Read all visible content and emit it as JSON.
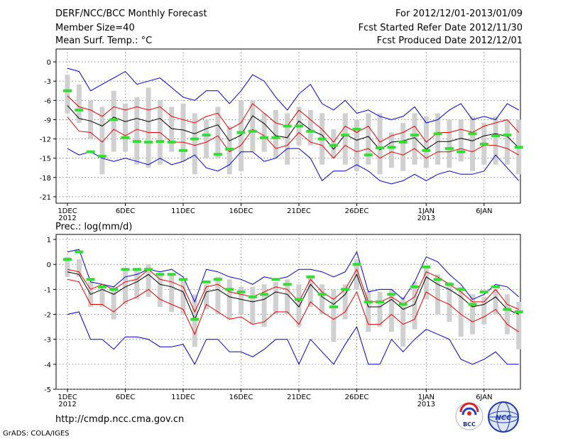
{
  "header": {
    "left": [
      "DERF/NCC/BCC Monthly Forecast",
      "Member Size=40",
      "Mean Surf. Temp.: °C"
    ],
    "right": [
      "For 2012/12/01-2013/01/09",
      "Fcst Started Refer Date 2012/11/30",
      "Fcst Produced Date 2012/12/01"
    ]
  },
  "footer": {
    "url": "http://cmdp.ncc.cma.gov.cn",
    "credit": "GrADS: COLA/IGES"
  },
  "logos": {
    "bcc": "BCC",
    "ncc": "NCC"
  },
  "colors": {
    "mean": "#000000",
    "spread": "#e60000",
    "range": "#0000cc",
    "box": "#d0d0d0",
    "median": "#33dd33"
  },
  "chart_data": [
    {
      "type": "line",
      "title": "Mean Surf. Temp.: °C",
      "ylim": [
        -22,
        2
      ],
      "yticks": [
        0,
        -3,
        -6,
        -9,
        -12,
        -15,
        -18,
        -21
      ],
      "xticks": [
        {
          "day": 1,
          "label": "1DEC",
          "sub": "2012"
        },
        {
          "day": 6,
          "label": "6DEC",
          "sub": ""
        },
        {
          "day": 11,
          "label": "11DEC",
          "sub": ""
        },
        {
          "day": 16,
          "label": "16DEC",
          "sub": ""
        },
        {
          "day": 21,
          "label": "21DEC",
          "sub": ""
        },
        {
          "day": 26,
          "label": "26DEC",
          "sub": ""
        },
        {
          "day": 32,
          "label": "1JAN",
          "sub": "2013"
        },
        {
          "day": 37,
          "label": "6JAN",
          "sub": ""
        }
      ],
      "x": [
        1,
        2,
        3,
        4,
        5,
        6,
        7,
        8,
        9,
        10,
        11,
        12,
        13,
        14,
        15,
        16,
        17,
        18,
        19,
        20,
        21,
        22,
        23,
        24,
        25,
        26,
        27,
        28,
        29,
        30,
        31,
        32,
        33,
        34,
        35,
        36,
        37,
        38,
        39,
        40
      ],
      "series": [
        {
          "name": "max",
          "values": [
            -1.0,
            -1.5,
            -4.5,
            -3.5,
            -2.5,
            -1.5,
            -3.5,
            -3.0,
            -2.5,
            -4.0,
            -5.5,
            -6.0,
            -4.5,
            -4.5,
            -6.5,
            -4.5,
            -2.0,
            -3.0,
            -5.5,
            -7.5,
            -5.0,
            -3.5,
            -6.5,
            -7.5,
            -6.0,
            -8.0,
            -7.5,
            -8.5,
            -9.0,
            -8.5,
            -7.0,
            -9.5,
            -9.0,
            -7.5,
            -6.5,
            -9.0,
            -8.5,
            -9.0,
            -6.5,
            -7.5
          ]
        },
        {
          "name": "upper",
          "values": [
            -5.3,
            -7.0,
            -7.5,
            -8.5,
            -7.0,
            -7.5,
            -7.0,
            -7.5,
            -7.0,
            -8.5,
            -9.0,
            -9.5,
            -8.5,
            -8.0,
            -10.5,
            -9.5,
            -6.5,
            -8.0,
            -9.5,
            -10.0,
            -7.5,
            -9.0,
            -10.5,
            -12.5,
            -10.0,
            -11.0,
            -10.0,
            -12.5,
            -11.5,
            -11.0,
            -10.0,
            -12.5,
            -11.0,
            -11.0,
            -10.5,
            -11.0,
            -10.0,
            -9.5,
            -9.0,
            -11.0
          ]
        },
        {
          "name": "mean",
          "values": [
            -6.8,
            -8.8,
            -9.2,
            -10.0,
            -8.6,
            -9.3,
            -8.8,
            -9.3,
            -8.8,
            -10.4,
            -10.6,
            -11.2,
            -10.4,
            -9.8,
            -12.3,
            -11.4,
            -8.4,
            -9.6,
            -11.5,
            -11.8,
            -9.2,
            -10.6,
            -11.4,
            -13.6,
            -11.3,
            -12.2,
            -11.6,
            -13.7,
            -12.5,
            -12.3,
            -11.8,
            -13.6,
            -12.4,
            -12.4,
            -11.9,
            -12.3,
            -11.5,
            -11.2,
            -11.6,
            -13.4
          ]
        },
        {
          "name": "lower",
          "values": [
            -8.6,
            -10.8,
            -11.0,
            -12.5,
            -10.5,
            -11.5,
            -10.5,
            -11.0,
            -11.0,
            -12.5,
            -12.5,
            -13.0,
            -12.5,
            -11.5,
            -14.0,
            -13.0,
            -10.5,
            -11.5,
            -13.5,
            -13.0,
            -11.0,
            -12.5,
            -13.0,
            -15.0,
            -13.0,
            -14.0,
            -13.5,
            -15.0,
            -14.0,
            -14.5,
            -13.5,
            -15.0,
            -14.0,
            -14.0,
            -13.5,
            -14.0,
            -13.0,
            -13.0,
            -13.5,
            -14.5
          ]
        },
        {
          "name": "min",
          "values": [
            -13.5,
            -14.5,
            -14.0,
            -15.0,
            -15.5,
            -15.0,
            -15.5,
            -16.0,
            -15.0,
            -16.0,
            -15.5,
            -14.5,
            -16.5,
            -17.0,
            -16.0,
            -14.0,
            -14.0,
            -15.5,
            -15.0,
            -13.5,
            -13.5,
            -15.0,
            -18.5,
            -17.0,
            -17.0,
            -16.0,
            -17.0,
            -18.5,
            -19.0,
            -18.5,
            -17.5,
            -18.5,
            -17.5,
            -17.0,
            -17.5,
            -17.5,
            -17.0,
            -14.5,
            -16.5,
            -18.5
          ]
        },
        {
          "name": "box_hi",
          "values": [
            -2,
            -3.5,
            -6,
            -7,
            -4.5,
            -6.5,
            -5.5,
            -4,
            -6,
            -7,
            -6.5,
            -8,
            -9,
            -7,
            -10,
            -6,
            -6,
            -8,
            -7.5,
            -8,
            -7,
            -7.5,
            -8,
            -10.5,
            -8,
            -9,
            -8,
            -8,
            -11,
            -9.5,
            -8,
            -8.5,
            -8,
            -9,
            -9,
            -8.5,
            -9.5,
            -8.5,
            -9,
            -9
          ]
        },
        {
          "name": "box_lo",
          "values": [
            -8,
            -9.5,
            -12,
            -17.5,
            -14,
            -14,
            -16,
            -16.5,
            -16,
            -14,
            -15.5,
            -17.5,
            -15,
            -15,
            -17.5,
            -17,
            -14,
            -14,
            -15,
            -16,
            -13,
            -13,
            -16,
            -15,
            -16,
            -17,
            -16,
            -17.5,
            -16.5,
            -17,
            -16,
            -16.5,
            -16,
            -16.5,
            -15.5,
            -17,
            -16,
            -16,
            -16,
            -17.5
          ]
        },
        {
          "name": "median",
          "values": [
            -4.5,
            -7.5,
            -14,
            -14.7,
            -9.0,
            -11.8,
            -12.4,
            -12.5,
            -12.4,
            -12.5,
            -13.8,
            -12.0,
            -11.4,
            -14.4,
            -13.6,
            -11.0,
            -10.8,
            -11.8,
            -11.8,
            -10.0,
            -10.0,
            -10.8,
            -12.0,
            -13.0,
            -11.4,
            -10.5,
            -14.5,
            -13.4,
            -13.3,
            -12.5,
            -11.4,
            -13.8,
            -11.2,
            -13.5,
            -14.0,
            -11.2,
            -12.8,
            -11.5,
            -11.4,
            -13.3
          ]
        }
      ]
    },
    {
      "type": "line",
      "title": "Prec.: log(mm/d)",
      "ylim": [
        -5,
        1.2
      ],
      "yticks": [
        1,
        0,
        -1,
        -2,
        -3,
        -4,
        -5
      ],
      "xticks": [
        {
          "day": 1,
          "label": "1DEC",
          "sub": "2012"
        },
        {
          "day": 6,
          "label": "6DEC",
          "sub": ""
        },
        {
          "day": 11,
          "label": "11DEC",
          "sub": ""
        },
        {
          "day": 16,
          "label": "16DEC",
          "sub": ""
        },
        {
          "day": 21,
          "label": "21DEC",
          "sub": ""
        },
        {
          "day": 26,
          "label": "26DEC",
          "sub": ""
        },
        {
          "day": 32,
          "label": "1JAN",
          "sub": "2013"
        },
        {
          "day": 37,
          "label": "6JAN",
          "sub": ""
        }
      ],
      "x": [
        1,
        2,
        3,
        4,
        5,
        6,
        7,
        8,
        9,
        10,
        11,
        12,
        13,
        14,
        15,
        16,
        17,
        18,
        19,
        20,
        21,
        22,
        23,
        24,
        25,
        26,
        27,
        28,
        29,
        30,
        31,
        32,
        33,
        34,
        35,
        36,
        37,
        38,
        39,
        40
      ],
      "series": [
        {
          "name": "max",
          "values": [
            0.5,
            0.6,
            -0.7,
            -0.8,
            -0.9,
            -0.5,
            -0.4,
            -0.2,
            -0.3,
            -0.2,
            -0.5,
            -1.5,
            -0.2,
            -0.3,
            -0.5,
            -0.6,
            -0.8,
            -0.5,
            -0.6,
            -0.5,
            -0.2,
            -0.2,
            -0.3,
            -0.5,
            -0.3,
            0.5,
            -1.1,
            -1.0,
            -1.0,
            -1.4,
            -0.7,
            0.3,
            0.1,
            -0.4,
            -0.8,
            -1.4,
            -1.2,
            -0.8,
            -0.9,
            -1.3
          ]
        },
        {
          "name": "upper",
          "values": [
            -0.2,
            -0.3,
            -1.0,
            -0.8,
            -1.0,
            -0.7,
            -0.6,
            -0.2,
            -0.6,
            -0.7,
            -0.9,
            -1.9,
            -0.9,
            -0.8,
            -1.1,
            -1.2,
            -1.3,
            -1.1,
            -0.9,
            -1.0,
            -1.5,
            -0.6,
            -1.1,
            -1.4,
            -1.0,
            -0.2,
            -1.5,
            -1.5,
            -1.3,
            -1.6,
            -1.3,
            -0.3,
            -0.5,
            -0.8,
            -1.1,
            -1.5,
            -1.5,
            -1.0,
            -1.6,
            -1.8
          ]
        },
        {
          "name": "mean",
          "values": [
            -0.3,
            -0.4,
            -1.2,
            -1.0,
            -1.2,
            -0.9,
            -0.7,
            -0.4,
            -0.8,
            -0.9,
            -1.1,
            -2.2,
            -1.1,
            -1.0,
            -1.3,
            -1.4,
            -1.5,
            -1.4,
            -1.1,
            -1.2,
            -1.7,
            -0.8,
            -1.3,
            -1.6,
            -1.2,
            -0.4,
            -1.7,
            -1.7,
            -1.4,
            -1.8,
            -1.6,
            -0.5,
            -0.8,
            -1.0,
            -1.3,
            -1.7,
            -1.6,
            -1.3,
            -1.8,
            -2.0
          ]
        },
        {
          "name": "lower",
          "values": [
            -0.6,
            -0.7,
            -1.6,
            -1.6,
            -1.9,
            -1.5,
            -1.3,
            -1.0,
            -1.4,
            -1.6,
            -1.8,
            -2.8,
            -1.6,
            -1.9,
            -2.2,
            -2.1,
            -2.4,
            -2.3,
            -1.9,
            -1.9,
            -2.4,
            -1.5,
            -1.9,
            -2.2,
            -1.9,
            -1.1,
            -2.4,
            -2.4,
            -2.0,
            -2.4,
            -2.2,
            -1.1,
            -1.4,
            -1.6,
            -2.0,
            -2.3,
            -2.1,
            -1.8,
            -2.4,
            -2.7
          ]
        },
        {
          "name": "min",
          "values": [
            -2.0,
            -1.9,
            -3.0,
            -3.0,
            -3.4,
            -2.9,
            -2.9,
            -3.0,
            -3.3,
            -3.3,
            -3.2,
            -4.0,
            -3.0,
            -3.0,
            -3.5,
            -3.5,
            -3.7,
            -3.4,
            -3.0,
            -3.0,
            -4.0,
            -3.0,
            -3.5,
            -4.0,
            -3.2,
            -2.5,
            -4.0,
            -4.0,
            -3.0,
            -3.5,
            -3.0,
            -2.6,
            -2.8,
            -3.0,
            -3.8,
            -4.0,
            -3.8,
            -3.5,
            -4.0,
            -4.0
          ]
        },
        {
          "name": "box_hi",
          "values": [
            0.3,
            0.2,
            -0.7,
            -0.9,
            -0.9,
            -0.2,
            -0.2,
            0,
            -0.4,
            -0.4,
            -0.6,
            -1.2,
            -0.8,
            -0.5,
            -0.6,
            -0.9,
            -0.9,
            -0.8,
            -0.7,
            -0.6,
            -0.8,
            -0.5,
            -0.8,
            -1.0,
            -0.8,
            0.2,
            -1.1,
            -1.1,
            -1.0,
            -1.3,
            -0.7,
            -0.1,
            -0.4,
            -0.7,
            -0.9,
            -1.2,
            -1.3,
            -1.0,
            -1.2,
            -1.5
          ]
        },
        {
          "name": "box_lo",
          "values": [
            -0.5,
            -0.5,
            -1.7,
            -1.7,
            -2.2,
            -1.6,
            -1.4,
            -1.3,
            -1.7,
            -1.9,
            -2.0,
            -3.3,
            -1.8,
            -2.0,
            -2.2,
            -2.0,
            -2.4,
            -2.5,
            -2.0,
            -2.0,
            -2.5,
            -1.7,
            -2.0,
            -3.1,
            -2.2,
            -1.0,
            -2.7,
            -2.5,
            -2.7,
            -3.3,
            -2.6,
            -1.4,
            -2.0,
            -2.3,
            -2.9,
            -2.8,
            -2.4,
            -2.0,
            -2.8,
            -3.4
          ]
        },
        {
          "name": "median",
          "values": [
            0.2,
            0.5,
            -0.6,
            -0.9,
            -1.0,
            -0.2,
            -0.2,
            -0.2,
            -0.4,
            -0.4,
            -0.6,
            -2.2,
            -0.7,
            -0.6,
            -1.0,
            -1.1,
            -1.3,
            -1.2,
            -0.6,
            -0.8,
            -1.4,
            -0.5,
            -1.2,
            -1.7,
            -1.0,
            0.0,
            -1.5,
            -1.5,
            -1.2,
            -1.6,
            -0.9,
            -0.1,
            -0.6,
            -0.8,
            -1.0,
            -1.6,
            -1.1,
            -0.9,
            -1.8,
            -1.9
          ]
        }
      ]
    }
  ]
}
